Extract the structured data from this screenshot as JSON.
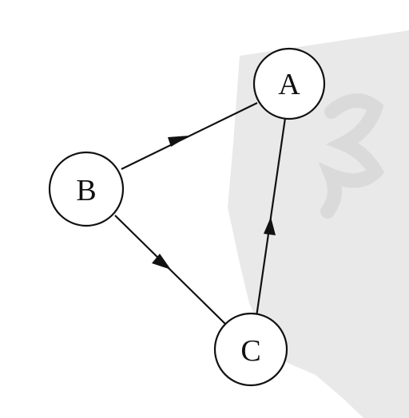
{
  "diagram": {
    "type": "directed-graph",
    "nodes": [
      {
        "id": "A",
        "label": "A"
      },
      {
        "id": "B",
        "label": "B"
      },
      {
        "id": "C",
        "label": "C"
      }
    ],
    "edges": [
      {
        "from": "B",
        "to": "A",
        "directed": true
      },
      {
        "from": "B",
        "to": "C",
        "directed": true
      },
      {
        "from": "C",
        "to": "A",
        "directed": true
      }
    ],
    "colors": {
      "stroke": "#111111",
      "node_fill": "#ffffff",
      "watermark": "#e6e6e6"
    }
  }
}
